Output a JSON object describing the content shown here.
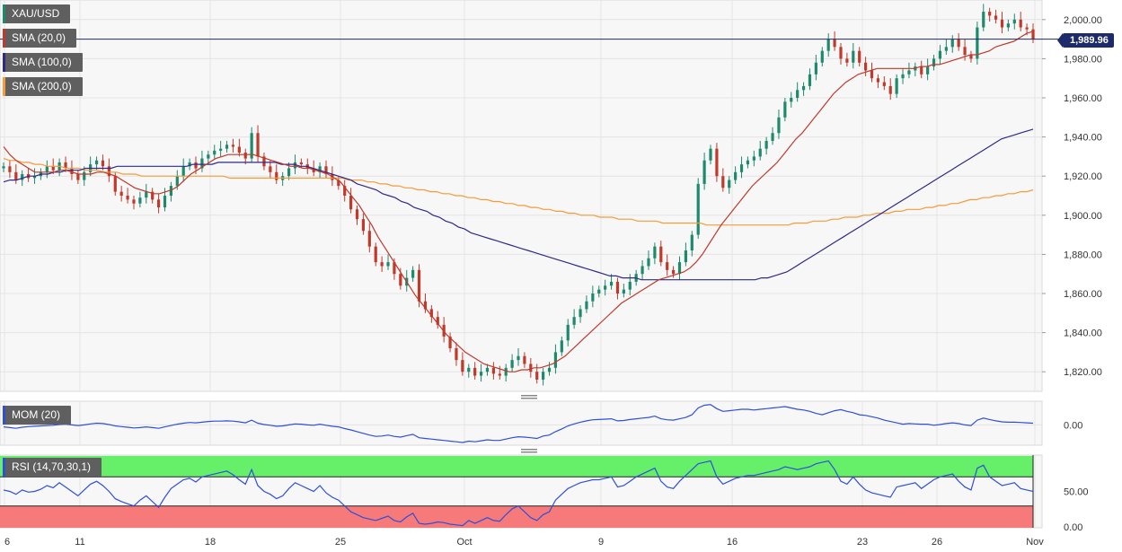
{
  "chart_data": {
    "type": "candlestick",
    "symbol": "XAU/USD",
    "last_price": "1,989.96",
    "x_ticks": [
      "6",
      "11",
      "18",
      "25",
      "Oct",
      "9",
      "16",
      "23",
      "26",
      "Nov"
    ],
    "price_axis": {
      "ticks": [
        "2,000.00",
        "1,980.00",
        "1,960.00",
        "1,940.00",
        "1,920.00",
        "1,900.00",
        "1,880.00",
        "1,860.00",
        "1,840.00",
        "1,820.00"
      ],
      "ylim": [
        1810,
        2010
      ]
    },
    "indicators": [
      {
        "name": "SMA (20,0)",
        "color": "#c0392b"
      },
      {
        "name": "SMA (100,0)",
        "color": "#2e2a86"
      },
      {
        "name": "SMA (200,0)",
        "color": "#f39c38"
      }
    ],
    "close_series": [
      1925,
      1922,
      1918,
      1921,
      1919,
      1920,
      1922,
      1925,
      1923,
      1927,
      1924,
      1921,
      1918,
      1922,
      1926,
      1928,
      1925,
      1920,
      1912,
      1910,
      1908,
      1906,
      1909,
      1912,
      1908,
      1904,
      1910,
      1915,
      1920,
      1925,
      1927,
      1924,
      1929,
      1931,
      1933,
      1934,
      1936,
      1935,
      1932,
      1929,
      1942,
      1930,
      1925,
      1922,
      1918,
      1920,
      1924,
      1927,
      1926,
      1924,
      1922,
      1925,
      1921,
      1918,
      1915,
      1910,
      1903,
      1898,
      1892,
      1884,
      1876,
      1874,
      1876,
      1870,
      1864,
      1868,
      1872,
      1856,
      1852,
      1848,
      1844,
      1838,
      1832,
      1826,
      1820,
      1822,
      1818,
      1820,
      1822,
      1819,
      1818,
      1822,
      1826,
      1828,
      1824,
      1820,
      1816,
      1820,
      1822,
      1830,
      1836,
      1844,
      1848,
      1852,
      1856,
      1860,
      1862,
      1864,
      1866,
      1860,
      1862,
      1866,
      1870,
      1874,
      1878,
      1884,
      1876,
      1872,
      1870,
      1876,
      1882,
      1890,
      1916,
      1928,
      1934,
      1920,
      1914,
      1918,
      1922,
      1926,
      1928,
      1930,
      1934,
      1938,
      1942,
      1950,
      1958,
      1960,
      1964,
      1966,
      1972,
      1978,
      1984,
      1990,
      1986,
      1980,
      1978,
      1984,
      1978,
      1974,
      1970,
      1968,
      1966,
      1962,
      1970,
      1972,
      1974,
      1976,
      1972,
      1976,
      1980,
      1984,
      1986,
      1990,
      1986,
      1982,
      1980,
      1996,
      2004,
      2002,
      2000,
      1996,
      1998,
      2000,
      1996,
      1995,
      1990
    ],
    "sma20": [
      1935,
      1931,
      1928,
      1926,
      1924,
      1922,
      1922,
      1922,
      1922,
      1923,
      1923,
      1922,
      1921,
      1921,
      1921,
      1922,
      1922,
      1921,
      1920,
      1918,
      1916,
      1914,
      1913,
      1912,
      1911,
      1911,
      1912,
      1913,
      1915,
      1918,
      1921,
      1923,
      1925,
      1927,
      1929,
      1930,
      1931,
      1931,
      1931,
      1931,
      1931,
      1930,
      1929,
      1928,
      1927,
      1926,
      1925,
      1925,
      1924,
      1924,
      1923,
      1922,
      1921,
      1919,
      1917,
      1913,
      1909,
      1905,
      1900,
      1895,
      1889,
      1884,
      1879,
      1874,
      1869,
      1864,
      1859,
      1855,
      1851,
      1847,
      1843,
      1839,
      1836,
      1833,
      1830,
      1828,
      1826,
      1824,
      1823,
      1822,
      1821,
      1820,
      1820,
      1821,
      1821,
      1822,
      1822,
      1823,
      1824,
      1826,
      1828,
      1831,
      1834,
      1837,
      1840,
      1843,
      1846,
      1849,
      1852,
      1855,
      1857,
      1859,
      1861,
      1863,
      1865,
      1867,
      1868,
      1869,
      1870,
      1871,
      1873,
      1876,
      1880,
      1885,
      1890,
      1895,
      1899,
      1903,
      1907,
      1911,
      1915,
      1918,
      1921,
      1924,
      1927,
      1931,
      1935,
      1939,
      1942,
      1946,
      1950,
      1954,
      1958,
      1962,
      1965,
      1968,
      1970,
      1972,
      1973,
      1974,
      1975,
      1975,
      1975,
      1975,
      1975,
      1975,
      1975,
      1976,
      1976,
      1977,
      1977,
      1978,
      1979,
      1980,
      1981,
      1982,
      1982,
      1983,
      1984,
      1986,
      1987,
      1988,
      1989,
      1991,
      1993,
      1994
    ],
    "sma100": [
      1917,
      1918,
      1918,
      1919,
      1920,
      1920,
      1921,
      1921,
      1922,
      1922,
      1923,
      1923,
      1923,
      1924,
      1924,
      1924,
      1924,
      1924,
      1925,
      1925,
      1925,
      1925,
      1925,
      1925,
      1925,
      1925,
      1925,
      1925,
      1925,
      1925,
      1926,
      1926,
      1926,
      1926,
      1927,
      1927,
      1927,
      1927,
      1927,
      1927,
      1927,
      1927,
      1927,
      1927,
      1926,
      1926,
      1926,
      1925,
      1925,
      1924,
      1923,
      1922,
      1921,
      1920,
      1919,
      1918,
      1916,
      1915,
      1914,
      1913,
      1911,
      1910,
      1909,
      1907,
      1906,
      1904,
      1903,
      1902,
      1900,
      1899,
      1897,
      1896,
      1894,
      1893,
      1891,
      1890,
      1889,
      1888,
      1887,
      1886,
      1885,
      1884,
      1883,
      1882,
      1881,
      1880,
      1879,
      1878,
      1877,
      1876,
      1875,
      1874,
      1873,
      1872,
      1871,
      1870,
      1869,
      1869,
      1868,
      1868,
      1868,
      1867,
      1867,
      1867,
      1867,
      1867,
      1867,
      1867,
      1867,
      1867,
      1867,
      1867,
      1867,
      1867,
      1867,
      1867,
      1867,
      1867,
      1867,
      1867,
      1868,
      1868,
      1869,
      1870,
      1871,
      1873,
      1875,
      1877,
      1879,
      1881,
      1883,
      1885,
      1887,
      1889,
      1891,
      1893,
      1895,
      1897,
      1899,
      1901,
      1903,
      1905,
      1907,
      1909,
      1911,
      1913,
      1915,
      1917,
      1919,
      1921,
      1923,
      1925,
      1927,
      1929,
      1931,
      1933,
      1935,
      1937,
      1939,
      1940,
      1941,
      1942,
      1943,
      1944
    ],
    "sma200": [
      1929,
      1928,
      1928,
      1927,
      1927,
      1926,
      1926,
      1925,
      1925,
      1925,
      1924,
      1924,
      1924,
      1923,
      1923,
      1923,
      1922,
      1922,
      1922,
      1921,
      1921,
      1921,
      1920,
      1920,
      1920,
      1920,
      1920,
      1920,
      1920,
      1920,
      1920,
      1920,
      1920,
      1920,
      1920,
      1920,
      1919,
      1919,
      1919,
      1919,
      1919,
      1919,
      1919,
      1919,
      1919,
      1919,
      1919,
      1919,
      1919,
      1919,
      1919,
      1919,
      1919,
      1919,
      1919,
      1918,
      1918,
      1918,
      1917,
      1917,
      1916,
      1916,
      1915,
      1915,
      1914,
      1914,
      1913,
      1913,
      1912,
      1912,
      1911,
      1911,
      1910,
      1910,
      1909,
      1909,
      1908,
      1908,
      1907,
      1907,
      1906,
      1906,
      1905,
      1905,
      1904,
      1904,
      1903,
      1903,
      1902,
      1902,
      1901,
      1901,
      1900,
      1900,
      1900,
      1899,
      1899,
      1899,
      1898,
      1898,
      1898,
      1897,
      1897,
      1897,
      1897,
      1896,
      1896,
      1896,
      1896,
      1896,
      1896,
      1896,
      1895,
      1895,
      1895,
      1895,
      1895,
      1895,
      1895,
      1895,
      1895,
      1895,
      1895,
      1895,
      1895,
      1895,
      1896,
      1896,
      1896,
      1897,
      1897,
      1897,
      1898,
      1898,
      1899,
      1899,
      1899,
      1900,
      1900,
      1901,
      1901,
      1901,
      1902,
      1902,
      1903,
      1903,
      1903,
      1904,
      1904,
      1905,
      1905,
      1906,
      1906,
      1907,
      1908,
      1908,
      1909,
      1909,
      1910,
      1910,
      1911,
      1911,
      1912,
      1912,
      1913
    ],
    "mom_panel": {
      "label": "MOM (20)",
      "ticks": [
        "0.00"
      ],
      "color": "#2f4fd8",
      "values": [
        -6,
        -8,
        -10,
        -7,
        -5,
        -4,
        -3,
        -2,
        -1,
        1,
        2,
        0,
        -2,
        0,
        3,
        5,
        4,
        1,
        -3,
        -5,
        -7,
        -9,
        -8,
        -6,
        -8,
        -10,
        -6,
        -2,
        2,
        5,
        7,
        6,
        8,
        10,
        11,
        11,
        12,
        11,
        9,
        6,
        14,
        5,
        1,
        -1,
        -4,
        -3,
        0,
        3,
        2,
        0,
        -1,
        2,
        -1,
        -4,
        -6,
        -11,
        -15,
        -20,
        -25,
        -30,
        -34,
        -33,
        -30,
        -34,
        -36,
        -32,
        -28,
        -38,
        -40,
        -42,
        -44,
        -46,
        -48,
        -50,
        -52,
        -48,
        -50,
        -47,
        -44,
        -46,
        -46,
        -42,
        -38,
        -35,
        -36,
        -38,
        -40,
        -33,
        -30,
        -20,
        -12,
        -3,
        3,
        8,
        12,
        15,
        16,
        17,
        18,
        12,
        13,
        16,
        18,
        20,
        22,
        26,
        18,
        15,
        14,
        18,
        22,
        30,
        50,
        58,
        60,
        48,
        40,
        42,
        44,
        46,
        46,
        44,
        46,
        48,
        50,
        52,
        54,
        50,
        46,
        44,
        40,
        34,
        30,
        36,
        42,
        45,
        40,
        36,
        30,
        28,
        24,
        20,
        14,
        10,
        6,
        2,
        4,
        3,
        2,
        2,
        -1,
        1,
        4,
        6,
        4,
        0,
        -2,
        14,
        20,
        16,
        12,
        9,
        8,
        8,
        7,
        6,
        5
      ]
    },
    "rsi_panel": {
      "label": "RSI (14,70,30,1)",
      "ticks": [
        "50.00",
        "0.00"
      ],
      "upper_band": 70,
      "lower_band": 30,
      "color": "#2f4fd8",
      "values": [
        52,
        50,
        46,
        52,
        49,
        50,
        53,
        58,
        55,
        62,
        56,
        50,
        44,
        52,
        60,
        64,
        58,
        50,
        40,
        36,
        33,
        30,
        38,
        44,
        36,
        28,
        42,
        54,
        60,
        66,
        68,
        63,
        70,
        72,
        74,
        76,
        78,
        73,
        66,
        60,
        80,
        58,
        50,
        46,
        40,
        44,
        54,
        62,
        58,
        54,
        50,
        58,
        48,
        42,
        38,
        30,
        22,
        18,
        14,
        12,
        10,
        13,
        16,
        10,
        8,
        15,
        20,
        6,
        5,
        6,
        8,
        7,
        5,
        4,
        3,
        10,
        6,
        10,
        14,
        10,
        9,
        18,
        26,
        30,
        22,
        14,
        10,
        18,
        22,
        38,
        46,
        54,
        58,
        62,
        64,
        66,
        66,
        68,
        70,
        56,
        58,
        64,
        70,
        74,
        78,
        82,
        64,
        56,
        54,
        64,
        72,
        80,
        88,
        90,
        92,
        70,
        60,
        64,
        68,
        70,
        72,
        72,
        74,
        76,
        78,
        80,
        84,
        82,
        80,
        82,
        84,
        88,
        90,
        92,
        80,
        64,
        60,
        70,
        60,
        52,
        48,
        46,
        44,
        42,
        56,
        58,
        60,
        62,
        54,
        60,
        66,
        70,
        72,
        74,
        64,
        56,
        52,
        82,
        86,
        70,
        64,
        58,
        60,
        62,
        54,
        52,
        50
      ]
    }
  },
  "legend": {
    "symbol": "XAU/USD",
    "sma20": "SMA (20,0)",
    "sma100": "SMA (100,0)",
    "sma200": "SMA (200,0)",
    "mom": "MOM (20)",
    "rsi": "RSI (14,70,30,1)"
  },
  "colors": {
    "up": "#1e8a6d",
    "down": "#c0392b",
    "sma20": "#c0392b",
    "sma100": "#2e2a86",
    "sma200": "#f39c38",
    "price_line": "#1d2b6a",
    "osc": "#2f4fd8",
    "rsi_upper_zone": "#66f06a",
    "rsi_lower_zone": "#f77a7a"
  }
}
